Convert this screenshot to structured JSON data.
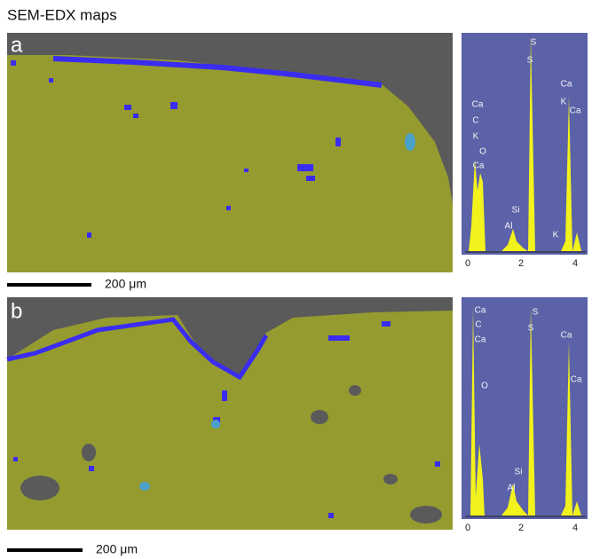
{
  "header": {
    "title": "SEM-EDX maps"
  },
  "panels": [
    {
      "label": "a",
      "scale_bar": "200 μm",
      "spectrum": {
        "peak_labels": [
          "S",
          "S",
          "Ca",
          "K",
          "Ca",
          "Ca",
          "C",
          "K",
          "O",
          "Ca",
          "Si",
          "Al",
          "K"
        ],
        "x_ticks": [
          "0",
          "2",
          "4"
        ]
      }
    },
    {
      "label": "b",
      "scale_bar": "200 μm",
      "spectrum": {
        "peak_labels": [
          "Ca",
          "C",
          "Ca",
          "O",
          "S",
          "S",
          "Ca",
          "Ca",
          "Si",
          "Al"
        ],
        "x_ticks": [
          "0",
          "2",
          "4"
        ]
      }
    }
  ]
}
